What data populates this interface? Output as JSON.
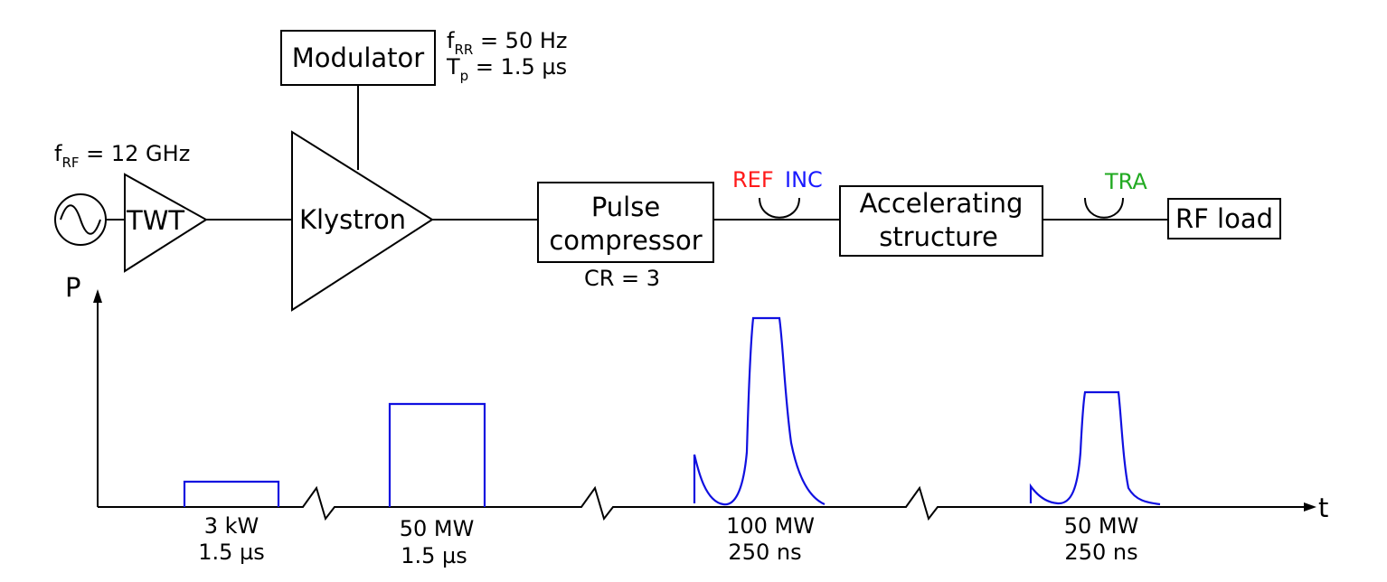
{
  "colors": {
    "ref": "#ff1a1a",
    "inc": "#1a1aff",
    "tra": "#22aa22",
    "pulse": "#1010e0"
  },
  "source": {
    "label_main": "f",
    "label_sub": "RF",
    "label_rest": " = 12 GHz",
    "icon": "sine-wave-source-icon"
  },
  "twt": {
    "label": "TWT"
  },
  "modulator": {
    "label": "Modulator",
    "param1_main": "f",
    "param1_sub": "RR",
    "param1_rest": " = 50 Hz",
    "param2_main": "T",
    "param2_sub": "p",
    "param2_rest": " = 1.5 µs"
  },
  "klystron": {
    "label": "Klystron"
  },
  "pulse_compressor": {
    "line1": "Pulse",
    "line2": "compressor",
    "param": "CR = 3"
  },
  "couplers": {
    "ref": "REF",
    "inc": "INC",
    "tra": "TRA"
  },
  "structure": {
    "line1": "Accelerating",
    "line2": "structure"
  },
  "load": {
    "label": "RF load"
  },
  "axes": {
    "y": "P",
    "x": "t"
  },
  "pulses": [
    {
      "power": "3 kW",
      "length": "1.5 µs"
    },
    {
      "power": "50 MW",
      "length": "1.5 µs"
    },
    {
      "power": "100 MW",
      "length": "250 ns"
    },
    {
      "power": "50 MW",
      "length": "250 ns"
    }
  ]
}
